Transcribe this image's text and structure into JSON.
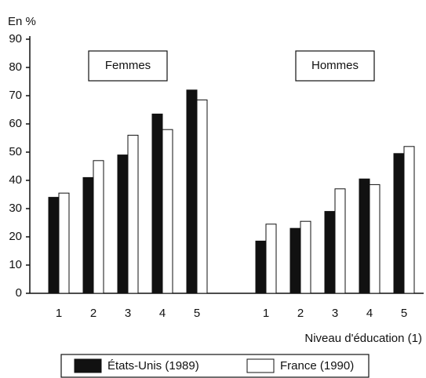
{
  "chart_data": {
    "type": "bar",
    "y_label": "En %",
    "x_label": "Niveau d'éducation (1)",
    "annotations": [
      "Femmes",
      "Hommes"
    ],
    "categories": [
      "1",
      "2",
      "3",
      "4",
      "5",
      null,
      "1",
      "2",
      "3",
      "4",
      "5"
    ],
    "series": [
      {
        "name": "États-Unis (1989)",
        "color": "#111111",
        "values": [
          34,
          41,
          49,
          63.5,
          72,
          null,
          18.5,
          23,
          29,
          40.5,
          49.5
        ]
      },
      {
        "name": "France (1990)",
        "color": "#ffffff",
        "values": [
          35.5,
          47,
          56,
          58,
          68.5,
          null,
          24.5,
          25.5,
          37,
          38.5,
          52
        ]
      }
    ],
    "ylim": [
      0,
      90
    ],
    "yticks": [
      0,
      10,
      20,
      30,
      40,
      50,
      60,
      70,
      80,
      90
    ],
    "grid": false
  }
}
